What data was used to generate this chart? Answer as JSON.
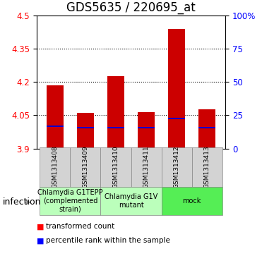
{
  "title": "GDS5635 / 220695_at",
  "samples": [
    "GSM1313408",
    "GSM1313409",
    "GSM1313410",
    "GSM1313411",
    "GSM1313412",
    "GSM1313413"
  ],
  "bar_tops": [
    4.185,
    4.06,
    4.225,
    4.065,
    4.44,
    4.075
  ],
  "bar_bottom": 3.9,
  "blue_marks": [
    4.0,
    3.995,
    3.995,
    3.995,
    4.035,
    3.995
  ],
  "bar_color": "#cc0000",
  "blue_color": "#0000cc",
  "ylim_left": [
    3.9,
    4.5
  ],
  "ylim_right": [
    0,
    100
  ],
  "yticks_left": [
    3.9,
    4.05,
    4.2,
    4.35,
    4.5
  ],
  "yticks_right": [
    0,
    25,
    50,
    75,
    100
  ],
  "ytick_labels_left": [
    "3.9",
    "4.05",
    "4.2",
    "4.35",
    "4.5"
  ],
  "ytick_labels_right": [
    "0",
    "25",
    "50",
    "75",
    "100%"
  ],
  "grid_lines": [
    4.05,
    4.2,
    4.35
  ],
  "group_configs": [
    {
      "indices": [
        0,
        1
      ],
      "label": "Chlamydia G1TEPP\n(complemented\nstrain)",
      "color": "#bbffbb"
    },
    {
      "indices": [
        2,
        3
      ],
      "label": "Chlamydia G1V\nmutant",
      "color": "#bbffbb"
    },
    {
      "indices": [
        4,
        5
      ],
      "label": "mock",
      "color": "#55ee55"
    }
  ],
  "infection_label": "infection",
  "legend_red": "transformed count",
  "legend_blue": "percentile rank within the sample",
  "bar_width": 0.55,
  "title_fontsize": 12,
  "tick_fontsize": 8.5,
  "sample_fontsize": 6.5,
  "group_fontsize": 7,
  "legend_fontsize": 7.5
}
